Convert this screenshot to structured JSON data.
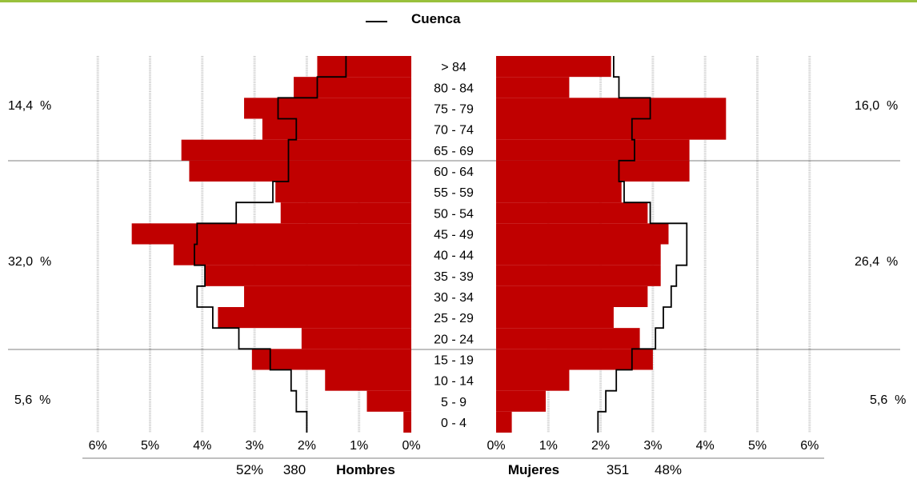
{
  "chart_data": {
    "type": "bar",
    "orientation": "horizontal",
    "legend": {
      "label": "Cuenca",
      "position": "top"
    },
    "categories": [
      "0 - 4",
      "5 - 9",
      "10 - 14",
      "15 - 19",
      "20 - 24",
      "25 - 29",
      "30 - 34",
      "35 - 39",
      "40 - 44",
      "45 - 49",
      "50 - 54",
      "55 - 59",
      "60 - 64",
      "65 - 69",
      "70 - 74",
      "75 - 79",
      "80 - 84",
      "> 84"
    ],
    "hombres_values": [
      0.15,
      0.85,
      1.65,
      3.05,
      2.1,
      3.7,
      3.2,
      3.95,
      4.55,
      5.35,
      2.5,
      2.6,
      4.25,
      4.4,
      2.85,
      3.2,
      2.25,
      1.8
    ],
    "mujeres_values": [
      0.3,
      0.95,
      1.4,
      3.0,
      2.75,
      2.25,
      2.9,
      3.15,
      3.15,
      3.3,
      2.9,
      2.4,
      3.7,
      3.7,
      4.4,
      4.4,
      1.4,
      2.2
    ],
    "hombres_line": [
      2.0,
      2.2,
      2.3,
      2.7,
      3.3,
      3.8,
      4.1,
      3.95,
      4.15,
      4.1,
      3.35,
      2.65,
      2.35,
      2.35,
      2.2,
      2.55,
      1.8,
      1.25
    ],
    "mujeres_line": [
      1.95,
      2.1,
      2.3,
      2.6,
      3.05,
      3.2,
      3.35,
      3.45,
      3.65,
      3.65,
      2.95,
      2.45,
      2.35,
      2.65,
      2.6,
      2.95,
      2.35,
      2.25
    ],
    "x_ticks": [
      "6%",
      "5%",
      "4%",
      "3%",
      "2%",
      "1%",
      "0%"
    ],
    "x_ticks_right": [
      "0%",
      "1%",
      "2%",
      "3%",
      "4%",
      "5%",
      "6%"
    ],
    "xlim": [
      0,
      6
    ],
    "grid": true,
    "left_group_labels": [
      "14,4  %",
      "32,0  %",
      "5,6  %"
    ],
    "right_group_labels": [
      "16,0  %",
      "26,4  %",
      "5,6  %"
    ],
    "footer": {
      "hombres_pct": "52%",
      "hombres_count": "380",
      "hombres_label": "Hombres",
      "mujeres_label": "Mujeres",
      "mujeres_count": "351",
      "mujeres_pct": "48%"
    },
    "colors": {
      "bar": "#c00000",
      "line": "#000000",
      "grid": "#c8c8c8",
      "top_rule": "#99c13c"
    }
  }
}
